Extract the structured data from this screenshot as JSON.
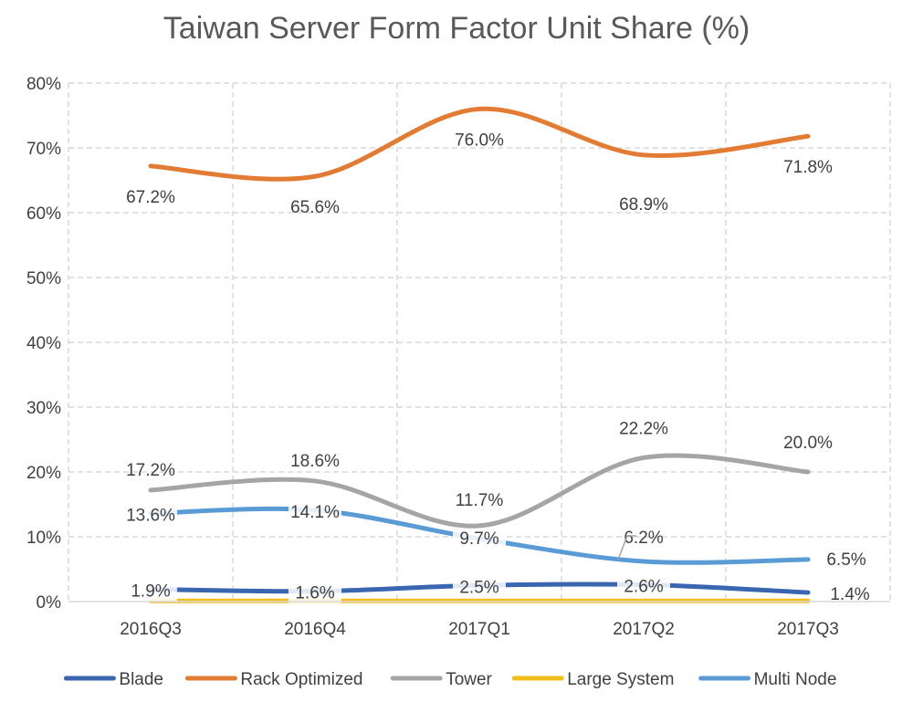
{
  "chart_data": {
    "type": "line",
    "title": "Taiwan Server Form Factor Unit Share (%)",
    "xlabel": "",
    "ylabel": "",
    "categories": [
      "2016Q3",
      "2016Q4",
      "2017Q1",
      "2017Q2",
      "2017Q3"
    ],
    "ylim": [
      0,
      80
    ],
    "yticks": [
      0,
      10,
      20,
      30,
      40,
      50,
      60,
      70,
      80
    ],
    "ytick_format": "%",
    "grid": true,
    "grid_style": "dashed",
    "smooth": true,
    "legend_position": "bottom",
    "series": [
      {
        "name": "Blade",
        "color": "#3A66B0",
        "values": [
          1.9,
          1.6,
          2.5,
          2.6,
          1.4
        ],
        "labels": [
          "1.9%",
          "1.6%",
          "2.5%",
          "2.6%",
          "1.4%"
        ]
      },
      {
        "name": "Rack Optimized",
        "color": "#E27B33",
        "values": [
          67.2,
          65.6,
          76.0,
          68.9,
          71.8
        ],
        "labels": [
          "67.2%",
          "65.6%",
          "76.0%",
          "68.9%",
          "71.8%"
        ]
      },
      {
        "name": "Tower",
        "color": "#A5A5A5",
        "values": [
          17.2,
          18.6,
          11.7,
          22.2,
          20.0
        ],
        "labels": [
          "17.2%",
          "18.6%",
          "11.7%",
          "22.2%",
          "20.0%"
        ]
      },
      {
        "name": "Large System",
        "color": "#F2BE1B",
        "values": [
          0.1,
          0.1,
          0.1,
          0.1,
          0.1
        ],
        "labels": []
      },
      {
        "name": "Multi Node",
        "color": "#5A9BD5",
        "values": [
          13.6,
          14.1,
          9.7,
          6.2,
          6.5
        ],
        "labels": [
          "13.6%",
          "14.1%",
          "9.7%",
          "6.2%",
          "6.5%"
        ]
      }
    ]
  }
}
